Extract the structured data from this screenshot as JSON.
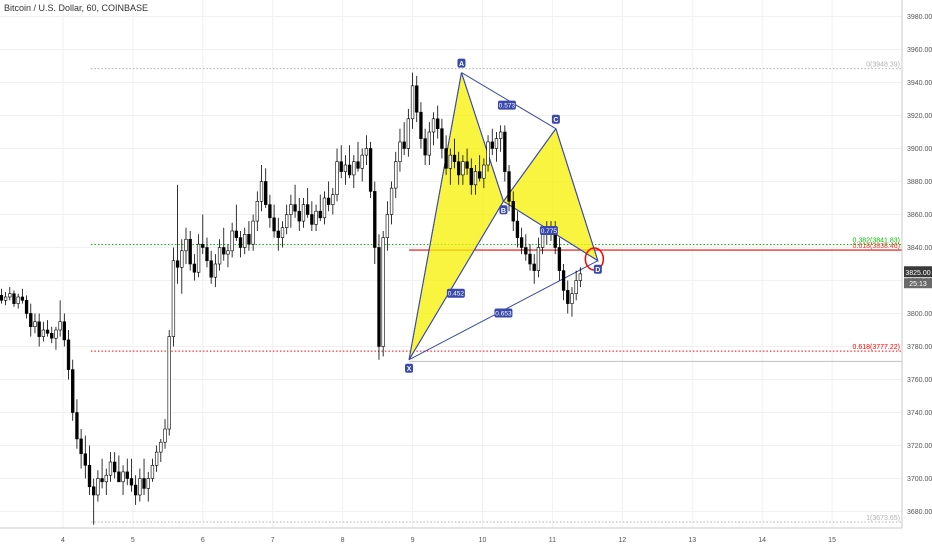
{
  "header": {
    "title": "Bitcoin / U.S. Dollar, 60, COINBASE"
  },
  "colors": {
    "up": "#ffffff",
    "down": "#000000",
    "wick": "#000000",
    "pattern_fill": "#f5f000",
    "pattern_line": "#3949ab",
    "fib_green": "#00c000",
    "fib_red": "#ff0000",
    "fib_gray": "#b0b0b0",
    "resistance": "#e53935",
    "axis_text": "#555555",
    "grid": "#f0f0f0"
  },
  "chart_data": {
    "type": "candlestick",
    "title": "Bitcoin / U.S. Dollar, 60, COINBASE",
    "grid": true,
    "ylim": [
      3670,
      3990
    ],
    "x_tick_labels": [
      "4",
      "5",
      "6",
      "7",
      "8",
      "9",
      "10",
      "11",
      "12",
      "13",
      "14",
      "15"
    ],
    "x_tick_days": [
      4,
      5,
      6,
      7,
      8,
      9,
      10,
      11,
      12,
      13,
      14,
      15
    ],
    "xlim": [
      3.1,
      16.0
    ],
    "y_tick_labels": [
      "3680.00",
      "3700.00",
      "3720.00",
      "3740.00",
      "3760.00",
      "3780.00",
      "3800.00",
      "3820.00",
      "3840.00",
      "3860.00",
      "3880.00",
      "3900.00",
      "3920.00",
      "3940.00",
      "3960.00",
      "3980.00"
    ],
    "y_ticks": [
      3680,
      3700,
      3720,
      3740,
      3760,
      3780,
      3800,
      3820,
      3840,
      3860,
      3880,
      3900,
      3920,
      3940,
      3960,
      3980
    ],
    "last_price_label": "3825.00",
    "last_price": 3825,
    "countdown_label": "25:13",
    "fib_levels": [
      {
        "label": "0(3948.39)",
        "value": 3948.39,
        "color": "#b0b0b0",
        "start": 4.4
      },
      {
        "label": "0.382(3841.83)",
        "value": 3841.83,
        "color": "#00c000",
        "start": 4.4
      },
      {
        "label": "0.618(3777.22)",
        "value": 3777.22,
        "color": "#ff0000",
        "start": 4.4
      },
      {
        "label": "1(3673.65)",
        "value": 3673.65,
        "color": "#b0b0b0",
        "start": 4.4
      }
    ],
    "fib_level_x1": {
      "value": 3771,
      "start": 8.95
    },
    "resistance": {
      "label": "0.618(3838.46)",
      "value": 3838.46,
      "color": "#e53935",
      "start": 8.95
    },
    "pattern_points": [
      {
        "label": "X",
        "t": 8.95,
        "v": 3772
      },
      {
        "label": "A",
        "t": 9.7,
        "v": 3946
      },
      {
        "label": "B",
        "t": 10.3,
        "v": 3868
      },
      {
        "label": "C",
        "t": 11.05,
        "v": 3912
      },
      {
        "label": "D",
        "t": 11.65,
        "v": 3832
      }
    ],
    "ratios": [
      {
        "label": "0.573",
        "t": 10.35,
        "v": 3926
      },
      {
        "label": "0.775",
        "t": 10.95,
        "v": 3850
      },
      {
        "label": "0.452",
        "t": 9.62,
        "v": 3812
      },
      {
        "label": "0.653",
        "t": 10.3,
        "v": 3800
      }
    ],
    "highlight_circle": {
      "t": 11.6,
      "v": 3833
    },
    "candles": [
      [
        3.0,
        3812,
        3816,
        3808,
        3813
      ],
      [
        3.06,
        3813,
        3816,
        3809,
        3811
      ],
      [
        3.12,
        3811,
        3815,
        3806,
        3808
      ],
      [
        3.18,
        3808,
        3813,
        3805,
        3810
      ],
      [
        3.24,
        3810,
        3816,
        3808,
        3812
      ],
      [
        3.3,
        3812,
        3814,
        3804,
        3806
      ],
      [
        3.36,
        3806,
        3812,
        3803,
        3810
      ],
      [
        3.42,
        3810,
        3815,
        3806,
        3808
      ],
      [
        3.48,
        3808,
        3811,
        3797,
        3800
      ],
      [
        3.54,
        3800,
        3806,
        3786,
        3792
      ],
      [
        3.6,
        3792,
        3800,
        3788,
        3795
      ],
      [
        3.66,
        3795,
        3800,
        3780,
        3786
      ],
      [
        3.72,
        3786,
        3795,
        3783,
        3790
      ],
      [
        3.78,
        3790,
        3796,
        3786,
        3788
      ],
      [
        3.84,
        3788,
        3792,
        3782,
        3785
      ],
      [
        3.9,
        3785,
        3792,
        3778,
        3790
      ],
      [
        3.96,
        3790,
        3808,
        3786,
        3795
      ],
      [
        4.02,
        3795,
        3800,
        3780,
        3784
      ],
      [
        4.08,
        3784,
        3790,
        3760,
        3766
      ],
      [
        4.14,
        3766,
        3772,
        3735,
        3740
      ],
      [
        4.2,
        3740,
        3748,
        3718,
        3724
      ],
      [
        4.26,
        3724,
        3730,
        3706,
        3715
      ],
      [
        4.32,
        3715,
        3726,
        3700,
        3708
      ],
      [
        4.38,
        3708,
        3720,
        3690,
        3695
      ],
      [
        4.44,
        3695,
        3700,
        3672,
        3690
      ],
      [
        4.5,
        3690,
        3705,
        3686,
        3700
      ],
      [
        4.56,
        3700,
        3712,
        3694,
        3698
      ],
      [
        4.62,
        3698,
        3706,
        3690,
        3702
      ],
      [
        4.68,
        3702,
        3716,
        3698,
        3710
      ],
      [
        4.74,
        3710,
        3716,
        3700,
        3704
      ],
      [
        4.8,
        3704,
        3714,
        3698,
        3698
      ],
      [
        4.86,
        3698,
        3708,
        3690,
        3704
      ],
      [
        4.92,
        3704,
        3712,
        3696,
        3700
      ],
      [
        4.98,
        3700,
        3712,
        3692,
        3696
      ],
      [
        5.04,
        3696,
        3702,
        3684,
        3690
      ],
      [
        5.1,
        3690,
        3706,
        3686,
        3700
      ],
      [
        5.16,
        3700,
        3712,
        3690,
        3694
      ],
      [
        5.22,
        3694,
        3704,
        3686,
        3700
      ],
      [
        5.28,
        3700,
        3712,
        3698,
        3708
      ],
      [
        5.34,
        3708,
        3720,
        3704,
        3716
      ],
      [
        5.4,
        3716,
        3724,
        3710,
        3722
      ],
      [
        5.46,
        3722,
        3736,
        3718,
        3730
      ],
      [
        5.52,
        3730,
        3790,
        3726,
        3786
      ],
      [
        5.58,
        3786,
        3840,
        3780,
        3832
      ],
      [
        5.64,
        3832,
        3878,
        3818,
        3828
      ],
      [
        5.7,
        3828,
        3845,
        3812,
        3838
      ],
      [
        5.76,
        3838,
        3852,
        3830,
        3845
      ],
      [
        5.82,
        3845,
        3850,
        3826,
        3830
      ],
      [
        5.88,
        3830,
        3836,
        3820,
        3825
      ],
      [
        5.94,
        3825,
        3848,
        3822,
        3842
      ],
      [
        6.0,
        3842,
        3860,
        3836,
        3840
      ],
      [
        6.06,
        3840,
        3846,
        3828,
        3832
      ],
      [
        6.12,
        3832,
        3838,
        3818,
        3822
      ],
      [
        6.18,
        3822,
        3836,
        3816,
        3830
      ],
      [
        6.24,
        3830,
        3845,
        3826,
        3840
      ],
      [
        6.3,
        3840,
        3852,
        3832,
        3836
      ],
      [
        6.36,
        3836,
        3842,
        3828,
        3838
      ],
      [
        6.42,
        3838,
        3855,
        3834,
        3850
      ],
      [
        6.48,
        3850,
        3866,
        3844,
        3846
      ],
      [
        6.54,
        3846,
        3850,
        3834,
        3840
      ],
      [
        6.6,
        3840,
        3852,
        3836,
        3848
      ],
      [
        6.66,
        3848,
        3856,
        3838,
        3842
      ],
      [
        6.72,
        3842,
        3860,
        3838,
        3856
      ],
      [
        6.78,
        3856,
        3874,
        3850,
        3868
      ],
      [
        6.84,
        3868,
        3890,
        3862,
        3880
      ],
      [
        6.9,
        3880,
        3888,
        3864,
        3866
      ],
      [
        6.96,
        3866,
        3872,
        3852,
        3858
      ],
      [
        7.02,
        3858,
        3866,
        3846,
        3850
      ],
      [
        7.08,
        3850,
        3858,
        3838,
        3846
      ],
      [
        7.14,
        3846,
        3856,
        3840,
        3852
      ],
      [
        7.2,
        3852,
        3866,
        3848,
        3860
      ],
      [
        7.26,
        3860,
        3872,
        3852,
        3866
      ],
      [
        7.32,
        3866,
        3878,
        3858,
        3862
      ],
      [
        7.38,
        3862,
        3870,
        3850,
        3856
      ],
      [
        7.44,
        3856,
        3870,
        3852,
        3866
      ],
      [
        7.5,
        3866,
        3876,
        3858,
        3860
      ],
      [
        7.56,
        3860,
        3868,
        3850,
        3854
      ],
      [
        7.62,
        3854,
        3866,
        3850,
        3862
      ],
      [
        7.68,
        3862,
        3872,
        3856,
        3858
      ],
      [
        7.74,
        3858,
        3874,
        3854,
        3870
      ],
      [
        7.8,
        3870,
        3880,
        3862,
        3866
      ],
      [
        7.86,
        3866,
        3876,
        3860,
        3872
      ],
      [
        7.92,
        3872,
        3900,
        3868,
        3892
      ],
      [
        7.98,
        3892,
        3902,
        3882,
        3886
      ],
      [
        8.04,
        3886,
        3896,
        3878,
        3890
      ],
      [
        8.1,
        3890,
        3902,
        3882,
        3884
      ],
      [
        8.16,
        3884,
        3896,
        3876,
        3892
      ],
      [
        8.22,
        3892,
        3904,
        3886,
        3888
      ],
      [
        8.28,
        3888,
        3900,
        3880,
        3896
      ],
      [
        8.34,
        3896,
        3908,
        3890,
        3900
      ],
      [
        8.4,
        3900,
        3904,
        3870,
        3874
      ],
      [
        8.46,
        3874,
        3880,
        3830,
        3840
      ],
      [
        8.52,
        3840,
        3848,
        3772,
        3780
      ],
      [
        8.58,
        3780,
        3850,
        3774,
        3846
      ],
      [
        8.64,
        3846,
        3868,
        3838,
        3860
      ],
      [
        8.7,
        3860,
        3880,
        3854,
        3876
      ],
      [
        8.76,
        3876,
        3898,
        3870,
        3892
      ],
      [
        8.82,
        3892,
        3912,
        3886,
        3904
      ],
      [
        8.88,
        3904,
        3916,
        3896,
        3900
      ],
      [
        8.94,
        3900,
        3924,
        3895,
        3918
      ],
      [
        9.0,
        3918,
        3946,
        3912,
        3938
      ],
      [
        9.06,
        3938,
        3944,
        3916,
        3922
      ],
      [
        9.12,
        3922,
        3928,
        3900,
        3906
      ],
      [
        9.18,
        3906,
        3912,
        3890,
        3896
      ],
      [
        9.24,
        3896,
        3916,
        3890,
        3910
      ],
      [
        9.3,
        3910,
        3922,
        3902,
        3918
      ],
      [
        9.36,
        3918,
        3926,
        3906,
        3912
      ],
      [
        9.42,
        3912,
        3918,
        3894,
        3900
      ],
      [
        9.48,
        3900,
        3908,
        3884,
        3888
      ],
      [
        9.54,
        3888,
        3900,
        3878,
        3896
      ],
      [
        9.6,
        3896,
        3906,
        3888,
        3892
      ],
      [
        9.66,
        3892,
        3898,
        3878,
        3884
      ],
      [
        9.72,
        3884,
        3896,
        3878,
        3892
      ],
      [
        9.78,
        3892,
        3900,
        3884,
        3888
      ],
      [
        9.84,
        3888,
        3894,
        3872,
        3878
      ],
      [
        9.9,
        3878,
        3890,
        3872,
        3886
      ],
      [
        9.96,
        3886,
        3896,
        3880,
        3882
      ],
      [
        10.02,
        3882,
        3894,
        3876,
        3890
      ],
      [
        10.08,
        3890,
        3908,
        3886,
        3904
      ],
      [
        10.14,
        3904,
        3912,
        3896,
        3900
      ],
      [
        10.2,
        3900,
        3910,
        3892,
        3906
      ],
      [
        10.26,
        3906,
        3914,
        3898,
        3910
      ],
      [
        10.32,
        3910,
        3914,
        3880,
        3886
      ],
      [
        10.38,
        3886,
        3890,
        3862,
        3868
      ],
      [
        10.44,
        3868,
        3874,
        3850,
        3856
      ],
      [
        10.5,
        3856,
        3862,
        3840,
        3846
      ],
      [
        10.56,
        3846,
        3852,
        3836,
        3840
      ],
      [
        10.62,
        3840,
        3848,
        3832,
        3836
      ],
      [
        10.68,
        3836,
        3842,
        3826,
        3830
      ],
      [
        10.74,
        3830,
        3836,
        3818,
        3826
      ],
      [
        10.8,
        3826,
        3846,
        3822,
        3840
      ],
      [
        10.86,
        3840,
        3852,
        3836,
        3848
      ],
      [
        10.92,
        3848,
        3856,
        3842,
        3850
      ],
      [
        10.98,
        3850,
        3856,
        3844,
        3852
      ],
      [
        11.04,
        3852,
        3856,
        3836,
        3840
      ],
      [
        11.1,
        3840,
        3846,
        3820,
        3826
      ],
      [
        11.16,
        3826,
        3830,
        3808,
        3814
      ],
      [
        11.22,
        3814,
        3820,
        3800,
        3806
      ],
      [
        11.28,
        3806,
        3816,
        3798,
        3812
      ],
      [
        11.34,
        3812,
        3826,
        3808,
        3820
      ],
      [
        11.4,
        3820,
        3828,
        3816,
        3824
      ]
    ]
  }
}
